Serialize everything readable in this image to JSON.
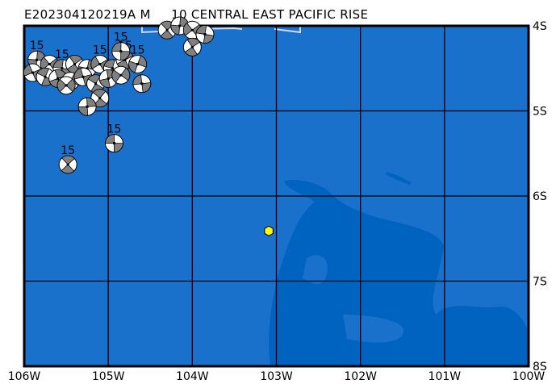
{
  "title": {
    "event_id": "E202304120219A",
    "magnitude_prefix": "M",
    "depth_region": "10 CENTRAL EAST PACIFIC RISE"
  },
  "map": {
    "lon_range": [
      -106,
      -100
    ],
    "lat_range": [
      -8,
      -4
    ],
    "lon_ticks": [
      {
        "v": -106,
        "label": "106W"
      },
      {
        "v": -105,
        "label": "105W"
      },
      {
        "v": -104,
        "label": "104W"
      },
      {
        "v": -103,
        "label": "103W"
      },
      {
        "v": -102,
        "label": "102W"
      },
      {
        "v": -101,
        "label": "101W"
      },
      {
        "v": -100,
        "label": "100W"
      }
    ],
    "lat_ticks": [
      {
        "v": -4,
        "label": "4S"
      },
      {
        "v": -5,
        "label": "5S"
      },
      {
        "v": -6,
        "label": "6S"
      },
      {
        "v": -7,
        "label": "7S"
      },
      {
        "v": -8,
        "label": "8S"
      }
    ],
    "colors": {
      "ocean": "#1a71cc",
      "deep": "#0063bf",
      "grid": "#000000",
      "epicenter": "#ffff00",
      "mech_dark": "#808080",
      "mech_light": "#ffffff",
      "plate_boundary": "#d8d8f8"
    },
    "epicenter": {
      "lon": -103.09,
      "lat": -6.41
    },
    "mechanisms": [
      {
        "lon": -104.93,
        "lat": -5.38,
        "label": "15"
      },
      {
        "lon": -105.48,
        "lat": -5.63,
        "label": "15"
      },
      {
        "lon": -105.85,
        "lat": -4.4,
        "label": "15"
      },
      {
        "lon": -105.7,
        "lat": -4.45,
        "label": ""
      },
      {
        "lon": -105.55,
        "lat": -4.5,
        "label": "15"
      },
      {
        "lon": -105.4,
        "lat": -4.45,
        "label": ""
      },
      {
        "lon": -105.25,
        "lat": -4.5,
        "label": ""
      },
      {
        "lon": -105.1,
        "lat": -4.45,
        "label": "15"
      },
      {
        "lon": -104.95,
        "lat": -4.5,
        "label": ""
      },
      {
        "lon": -104.8,
        "lat": -4.4,
        "label": "15"
      },
      {
        "lon": -104.65,
        "lat": -4.45,
        "label": "15"
      },
      {
        "lon": -105.9,
        "lat": -4.55,
        "label": ""
      },
      {
        "lon": -105.75,
        "lat": -4.6,
        "label": ""
      },
      {
        "lon": -105.6,
        "lat": -4.62,
        "label": ""
      },
      {
        "lon": -105.45,
        "lat": -4.65,
        "label": ""
      },
      {
        "lon": -105.3,
        "lat": -4.6,
        "label": ""
      },
      {
        "lon": -105.15,
        "lat": -4.68,
        "label": ""
      },
      {
        "lon": -105.0,
        "lat": -4.62,
        "label": ""
      },
      {
        "lon": -104.85,
        "lat": -4.58,
        "label": ""
      },
      {
        "lon": -104.6,
        "lat": -4.68,
        "label": ""
      },
      {
        "lon": -105.1,
        "lat": -4.85,
        "label": ""
      },
      {
        "lon": -105.25,
        "lat": -4.95,
        "label": ""
      },
      {
        "lon": -105.5,
        "lat": -4.7,
        "label": ""
      },
      {
        "lon": -104.85,
        "lat": -4.3,
        "label": "15"
      },
      {
        "lon": -104.3,
        "lat": -4.05,
        "label": ""
      },
      {
        "lon": -104.15,
        "lat": -4.0,
        "label": ""
      },
      {
        "lon": -104.0,
        "lat": -4.05,
        "label": ""
      },
      {
        "lon": -103.85,
        "lat": -4.1,
        "label": ""
      },
      {
        "lon": -104.0,
        "lat": -4.25,
        "label": ""
      }
    ]
  }
}
